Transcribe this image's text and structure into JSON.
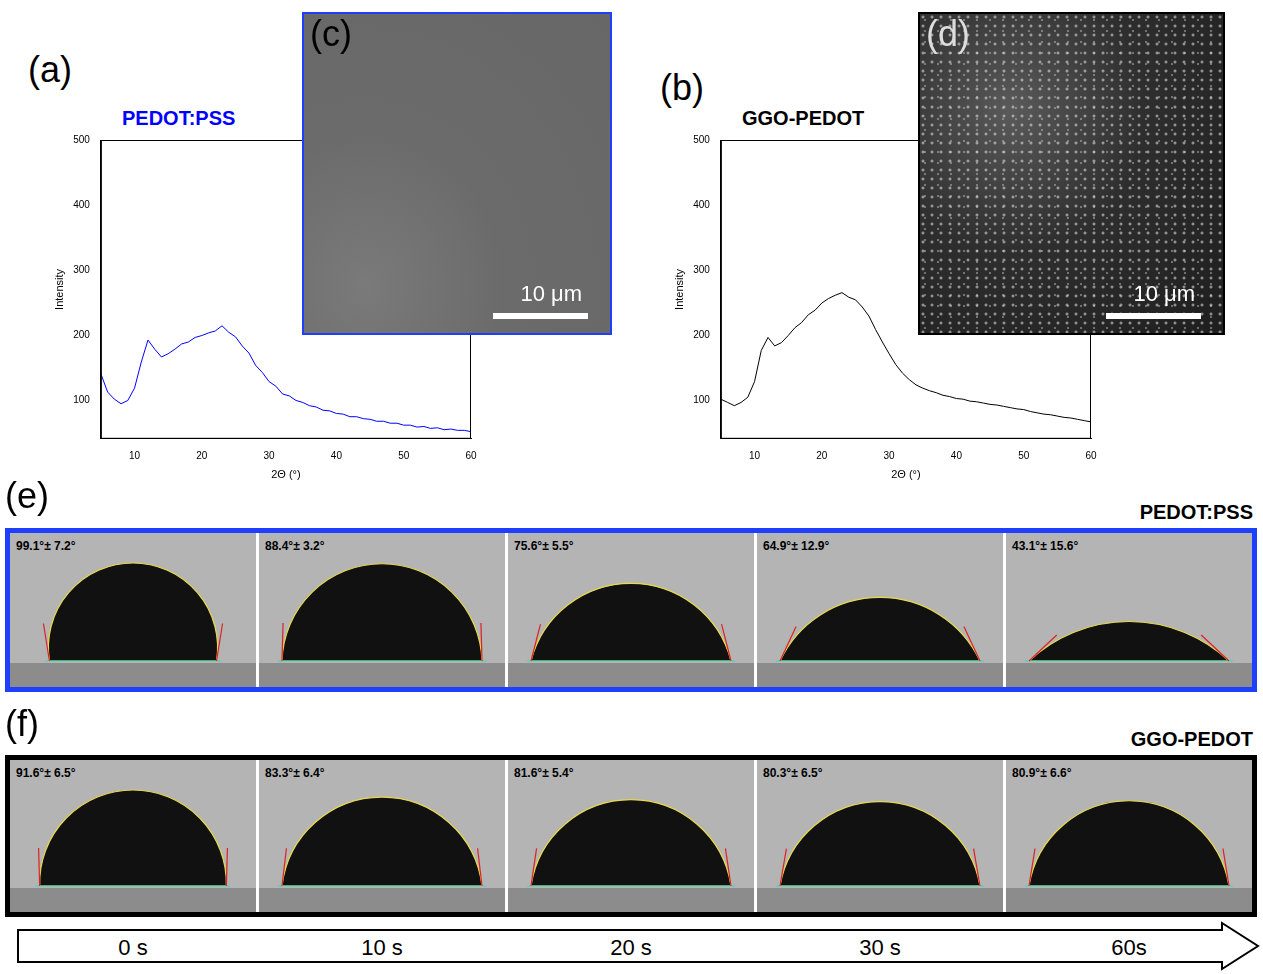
{
  "chart_data": [
    {
      "type": "line",
      "label": "(a)",
      "title": "PEDOT:PSS",
      "x_label": "2Θ (°)",
      "y_label": "Intensity",
      "x": [
        5,
        6,
        7,
        8,
        9,
        10,
        11,
        12,
        13,
        14,
        15,
        16,
        17,
        18,
        19,
        20,
        21,
        22,
        23,
        24,
        25,
        26,
        27,
        28,
        29,
        30,
        31,
        32,
        33,
        34,
        35,
        36,
        37,
        38,
        39,
        40,
        41,
        42,
        43,
        44,
        45,
        46,
        47,
        48,
        49,
        50,
        51,
        52,
        53,
        54,
        55,
        56,
        57,
        58,
        59,
        60
      ],
      "values": [
        140,
        112,
        101,
        94,
        99,
        118,
        158,
        192,
        178,
        166,
        171,
        178,
        186,
        189,
        196,
        199,
        203,
        206,
        214,
        204,
        197,
        183,
        172,
        153,
        142,
        128,
        121,
        109,
        106,
        99,
        96,
        91,
        89,
        84,
        83,
        79,
        78,
        74,
        74,
        71,
        70,
        67,
        67,
        64,
        64,
        61,
        61,
        58,
        59,
        56,
        57,
        54,
        55,
        53,
        53,
        51
      ],
      "color": "#0000ff",
      "xlim": [
        5,
        60
      ],
      "xticks": [
        10,
        20,
        30,
        40,
        50,
        60
      ],
      "ylim": [
        40,
        500
      ],
      "yticks": [
        100,
        200,
        300,
        400,
        500
      ],
      "grid": false,
      "inset": {
        "label": "(c)",
        "scale_bar": "10 μm"
      }
    },
    {
      "type": "line",
      "label": "(b)",
      "title": "GGO-PEDOT",
      "x_label": "2Θ (°)",
      "y_label": "Intensity",
      "x": [
        5,
        6,
        7,
        8,
        9,
        10,
        11,
        12,
        13,
        14,
        15,
        16,
        17,
        18,
        19,
        20,
        21,
        22,
        23,
        24,
        25,
        26,
        27,
        28,
        29,
        30,
        31,
        32,
        33,
        34,
        35,
        36,
        37,
        38,
        39,
        40,
        41,
        42,
        43,
        44,
        45,
        46,
        47,
        48,
        49,
        50,
        51,
        52,
        53,
        54,
        55,
        56,
        57,
        58,
        59,
        60
      ],
      "values": [
        101,
        96,
        91,
        96,
        104,
        128,
        176,
        196,
        183,
        188,
        199,
        211,
        219,
        231,
        238,
        249,
        256,
        261,
        265,
        258,
        254,
        243,
        229,
        208,
        189,
        171,
        154,
        141,
        131,
        123,
        118,
        114,
        111,
        107,
        105,
        102,
        101,
        98,
        97,
        95,
        93,
        92,
        90,
        88,
        86,
        85,
        82,
        80,
        78,
        77,
        75,
        73,
        72,
        70,
        68,
        66
      ],
      "color": "#000000",
      "xlim": [
        5,
        60
      ],
      "xticks": [
        10,
        20,
        30,
        40,
        50,
        60
      ],
      "ylim": [
        40,
        500
      ],
      "yticks": [
        100,
        200,
        300,
        400,
        500
      ],
      "grid": false,
      "inset": {
        "label": "(d)",
        "scale_bar": "10 μm"
      }
    }
  ],
  "contact_angle": {
    "panels": [
      {
        "label": "(e)",
        "title": "PEDOT:PSS",
        "color": "#1f3fff",
        "angles": [
          99.1,
          88.4,
          75.6,
          64.9,
          43.1
        ],
        "angle_labels": [
          "99.1°± 7.2°",
          "88.4°± 3.2°",
          "75.6°± 5.5°",
          "64.9°± 12.9°",
          "43.1°± 15.6°"
        ]
      },
      {
        "label": "(f)",
        "title": "GGO-PEDOT",
        "color": "#000000",
        "angles": [
          91.6,
          83.3,
          81.6,
          80.3,
          80.9
        ],
        "angle_labels": [
          "91.6°± 6.5°",
          "83.3°± 6.4°",
          "81.6°± 5.4°",
          "80.3°± 6.5°",
          "80.9°± 6.6°"
        ]
      }
    ],
    "times": [
      "0 s",
      "10 s",
      "20 s",
      "30 s",
      "60s"
    ]
  }
}
